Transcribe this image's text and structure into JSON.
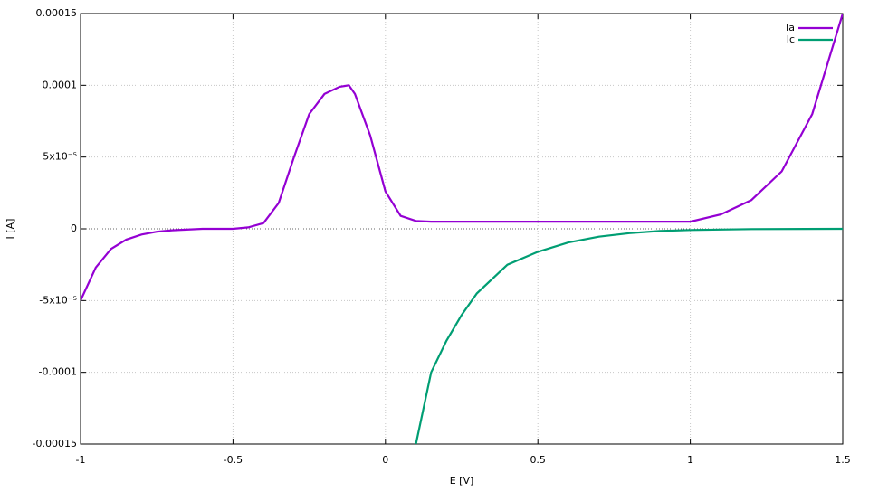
{
  "chart_data": {
    "type": "line",
    "x_label": "E [V]",
    "y_label": "I [A]",
    "xlim": [
      -1,
      1.5
    ],
    "xticks": [
      -1,
      -0.5,
      0,
      0.5,
      1,
      1.5
    ],
    "ylim": [
      -0.00015,
      0.00015
    ],
    "yticks": [
      {
        "value": -0.00015,
        "label": "-0.00015"
      },
      {
        "value": -0.0001,
        "label": "-0.0001"
      },
      {
        "value": -5e-05,
        "label": "-5x10⁻⁵"
      },
      0,
      {
        "value": 5e-05,
        "label": "5x10⁻⁵"
      },
      0.0001,
      0.00015
    ],
    "grid": true,
    "legend": "top-right",
    "series": [
      {
        "name": "Ia",
        "color": "#9400d3",
        "x": [
          -1,
          -0.95,
          -0.9,
          -0.85,
          -0.8,
          -0.75,
          -0.7,
          -0.6,
          -0.5,
          -0.45,
          -0.4,
          -0.35,
          -0.3,
          -0.25,
          -0.2,
          -0.15,
          -0.12,
          -0.1,
          -0.05,
          0,
          0.05,
          0.1,
          0.15,
          0.5,
          1.0,
          1.1,
          1.2,
          1.3,
          1.4,
          1.5
        ],
        "values": [
          -5e-05,
          -2.7e-05,
          -1.4e-05,
          -7.5e-06,
          -4e-06,
          -2e-06,
          -1e-06,
          0,
          0,
          1e-06,
          4e-06,
          1.8e-05,
          5e-05,
          8e-05,
          9.4e-05,
          9.9e-05,
          0.0001,
          9.4e-05,
          6.5e-05,
          2.6e-05,
          9e-06,
          5.5e-06,
          5e-06,
          5e-06,
          5e-06,
          1e-05,
          2e-05,
          4e-05,
          8e-05,
          0.00015
        ]
      },
      {
        "name": "Ic",
        "color": "#009e73",
        "x": [
          0.1,
          0.15,
          0.2,
          0.25,
          0.3,
          0.4,
          0.5,
          0.6,
          0.7,
          0.8,
          0.9,
          1.0,
          1.2,
          1.5
        ],
        "values": [
          -0.00015,
          -0.0001,
          -7.8e-05,
          -6e-05,
          -4.5e-05,
          -2.5e-05,
          -1.6e-05,
          -9.5e-06,
          -5.5e-06,
          -3e-06,
          -1.5e-06,
          -8e-07,
          -2e-07,
          0
        ]
      }
    ]
  }
}
